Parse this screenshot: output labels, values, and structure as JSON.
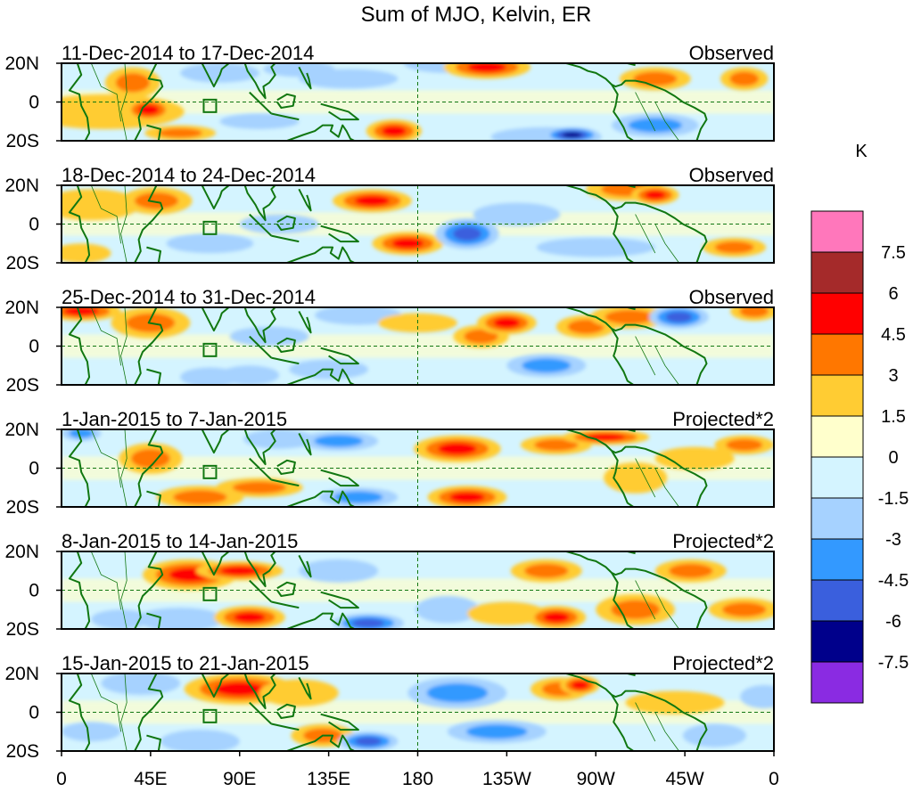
{
  "title": "Sum of MJO, Kelvin, ER",
  "y_ticks": [
    "20N",
    "0",
    "20S"
  ],
  "x_ticks": [
    "0",
    "45E",
    "90E",
    "135E",
    "180",
    "135W",
    "90W",
    "45W",
    "0"
  ],
  "panels": [
    {
      "date": "11-Dec-2014 to 17-Dec-2014",
      "type": "Observed"
    },
    {
      "date": "18-Dec-2014 to 24-Dec-2014",
      "type": "Observed"
    },
    {
      "date": "25-Dec-2014 to 31-Dec-2014",
      "type": "Observed"
    },
    {
      "date": "1-Jan-2015 to 7-Jan-2015",
      "type": "Projected*2"
    },
    {
      "date": "8-Jan-2015 to 14-Jan-2015",
      "type": "Projected*2"
    },
    {
      "date": "15-Jan-2015 to 21-Jan-2015",
      "type": "Projected*2"
    }
  ],
  "colorbar": {
    "unit": "K",
    "colors": [
      "#ff77bb",
      "#a52a2a",
      "#ff0000",
      "#ff7700",
      "#ffcc33",
      "#ffffcc",
      "#d4f4ff",
      "#a6d2ff",
      "#3399ff",
      "#3a5fdd",
      "#00008b",
      "#8a2be2"
    ],
    "labels": [
      "7.5",
      "6",
      "4.5",
      "3",
      "1.5",
      "0",
      "-1.5",
      "-3",
      "-4.5",
      "-6",
      "-7.5"
    ]
  }
}
